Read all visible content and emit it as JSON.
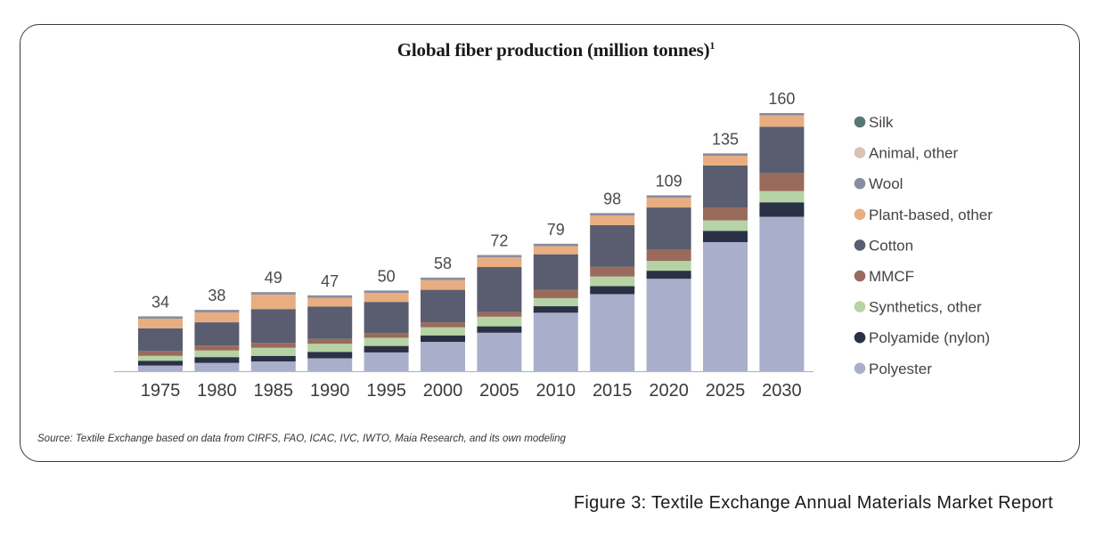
{
  "chart_data": {
    "type": "bar",
    "stacked": true,
    "title": "Global fiber production (million tonnes)",
    "title_superscript": "1",
    "categories": [
      "1975",
      "1980",
      "1985",
      "1990",
      "1995",
      "2000",
      "2005",
      "2010",
      "2015",
      "2020",
      "2025",
      "2030"
    ],
    "totals": [
      34,
      38,
      49,
      47,
      50,
      58,
      72,
      79,
      98,
      109,
      135,
      160
    ],
    "series": [
      {
        "name": "Polyester",
        "color": "#a9afcb",
        "values": [
          3.5,
          5,
          6,
          8,
          11.5,
          18,
          24,
          36,
          48,
          57,
          80,
          96
        ]
      },
      {
        "name": "Polyamide (nylon)",
        "color": "#2b3145",
        "values": [
          3,
          3.5,
          3.5,
          4,
          4,
          4,
          4,
          4,
          5,
          5,
          7,
          9
        ]
      },
      {
        "name": "Synthetics, other",
        "color": "#b6d3a5",
        "values": [
          3,
          4,
          5,
          5,
          5,
          5,
          6,
          5,
          6,
          6,
          6.5,
          7
        ]
      },
      {
        "name": "MMCF",
        "color": "#9a6b5c",
        "values": [
          3,
          3,
          3,
          3,
          3,
          3,
          3,
          5,
          6,
          7,
          8,
          11
        ]
      },
      {
        "name": "Cotton",
        "color": "#595d6f",
        "values": [
          14,
          14,
          21,
          20,
          19,
          20,
          28,
          22,
          26,
          26,
          26,
          29
        ]
      },
      {
        "name": "Plant-based, other",
        "color": "#e8ad80",
        "values": [
          6,
          6,
          9,
          5.5,
          5.5,
          6,
          6,
          5,
          6,
          6,
          6,
          7
        ]
      },
      {
        "name": "Wool",
        "color": "#898d9e",
        "values": [
          1.5,
          1.5,
          1.5,
          1.5,
          1.5,
          1.5,
          1.5,
          1.5,
          1.5,
          1.5,
          1.5,
          1.5
        ]
      },
      {
        "name": "Animal, other",
        "color": "#d8c3b6",
        "values": [
          0,
          0,
          0,
          0,
          0,
          0,
          0,
          0,
          0,
          0,
          0,
          0
        ]
      },
      {
        "name": "Silk",
        "color": "#587876",
        "values": [
          0,
          0,
          0,
          0,
          0,
          0,
          0,
          0,
          0,
          0,
          0,
          0
        ]
      }
    ],
    "legend_order": [
      "Silk",
      "Animal, other",
      "Wool",
      "Plant-based, other",
      "Cotton",
      "MMCF",
      "Synthetics, other",
      "Polyamide (nylon)",
      "Polyester"
    ],
    "legend_position": "right",
    "ylim": [
      0,
      160
    ],
    "grid": false,
    "xlabel": "",
    "ylabel": ""
  },
  "source_note": "Source: Textile Exchange based on data from CIRFS, FAO, ICAC, IVC, IWTO, Maia Research, and its own modeling",
  "figure_caption": "Figure 3: Textile Exchange Annual Materials Market Report"
}
